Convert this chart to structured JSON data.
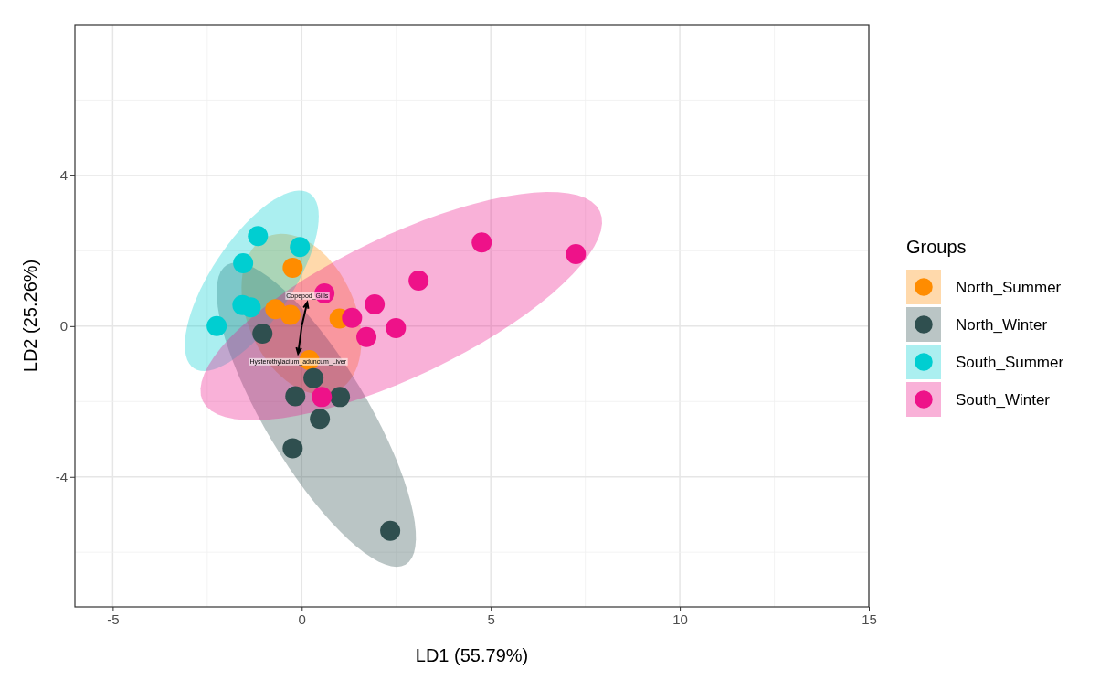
{
  "chart_data": {
    "type": "scatter",
    "xlabel": "LD1 (55.79%)",
    "ylabel": "LD2 (25.26%)",
    "legend_title": "Groups",
    "legend": "right",
    "grid": true,
    "marker": "circle",
    "xlim": [
      -6,
      15
    ],
    "ylim": [
      -7.45,
      8
    ],
    "xticks": [
      -5,
      0,
      5,
      10,
      15
    ],
    "yticks": [
      -4,
      0,
      4
    ],
    "series": [
      {
        "name": "North_Summer",
        "color": "#ff8c00",
        "x": [
          -0.24,
          1.0,
          -0.7,
          -0.3,
          0.2
        ],
        "values": [
          1.55,
          0.2,
          0.45,
          0.3,
          -0.9
        ]
      },
      {
        "name": "North_Winter",
        "color": "#2f4f4f",
        "x": [
          -1.04,
          0.12,
          0.31,
          0,
          -0.17,
          1.01,
          0.48,
          -0.24,
          2.34
        ],
        "values": [
          -0.2,
          null,
          -1.38,
          null,
          -1.86,
          -1.88,
          -2.46,
          -3.24,
          -5.43
        ]
      },
      {
        "name": "South_Summer",
        "color": "#00ced1",
        "x": [
          -1.16,
          -0.05,
          -1.55,
          -2.25,
          -1.57,
          -1.35
        ],
        "values": [
          2.39,
          2.1,
          1.67,
          0,
          0.56,
          0.5
        ]
      },
      {
        "name": "South_Winter",
        "color": "#ee1289",
        "x": [
          4.76,
          7.25,
          3.09,
          1.93,
          1.33,
          1.71,
          2.49,
          0.6,
          0.53
        ],
        "values": [
          2.22,
          1.91,
          1.21,
          0.58,
          0.22,
          -0.29,
          -0.05,
          0.87,
          -1.88
        ]
      }
    ],
    "annotations": [
      "Copepod_Gills",
      "Hysterothylacium_aduncum_Liver"
    ]
  }
}
